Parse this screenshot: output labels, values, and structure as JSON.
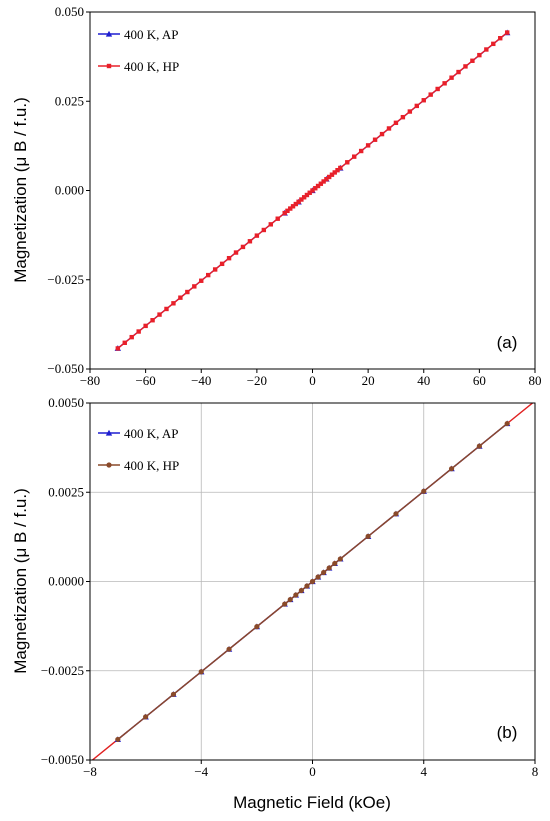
{
  "chart_data": [
    {
      "type": "line",
      "panel_label": "(a)",
      "ylabel": "Magnetization  (μ B / f.u.)",
      "xlabel": "",
      "xlim": [
        -80,
        80
      ],
      "ylim": [
        -0.05,
        0.05
      ],
      "xticks": [
        "−80",
        "−60",
        "−40",
        "−20",
        "0",
        "20",
        "40",
        "60",
        "80"
      ],
      "yticks": [
        "0.050",
        "0.025",
        "0.000",
        "−0.025",
        "−0.050"
      ],
      "grid": false,
      "legend_position": "top-left",
      "series": [
        {
          "name": "400 K, AP",
          "color": "#1f1fd0",
          "marker": "triangle",
          "x": [
            -70,
            -10,
            -5,
            0,
            5,
            10,
            70
          ],
          "y": [
            -0.0442,
            -0.0063,
            -0.0032,
            0.0,
            0.0032,
            0.0063,
            0.0442
          ]
        },
        {
          "name": "400 K, HP",
          "color": "#e8202a",
          "marker": "square",
          "x": [
            -70,
            -67.5,
            -65,
            -62.5,
            -60,
            -57.5,
            -55,
            -52.5,
            -50,
            -47.5,
            -45,
            -42.5,
            -40,
            -37.5,
            -35,
            -32.5,
            -30,
            -27.5,
            -25,
            -22.5,
            -20,
            -17.5,
            -15,
            -12.5,
            -10,
            -9,
            -8,
            -7,
            -6,
            -5,
            -4,
            -3,
            -2,
            -1,
            0,
            1,
            2,
            3,
            4,
            5,
            6,
            7,
            8,
            9,
            10,
            12.5,
            15,
            17.5,
            20,
            22.5,
            25,
            27.5,
            30,
            32.5,
            35,
            37.5,
            40,
            42.5,
            45,
            47.5,
            50,
            52.5,
            55,
            57.5,
            60,
            62.5,
            65,
            67.5,
            70
          ],
          "slope": 0.000632
        }
      ]
    },
    {
      "type": "line",
      "panel_label": "(b)",
      "ylabel": "Magnetization  (μ B / f.u.)",
      "xlabel": "Magnetic Field (kOe)",
      "xlim": [
        -8,
        8
      ],
      "ylim": [
        -0.005,
        0.005
      ],
      "xticks": [
        "−8",
        "−4",
        "0",
        "4",
        "8"
      ],
      "yticks": [
        "0.0050",
        "0.0025",
        "0.0000",
        "−0.0025",
        "−0.0050"
      ],
      "grid": true,
      "legend_position": "top-left",
      "fit_line_color": "#e02020",
      "series": [
        {
          "name": "400 K, AP",
          "color": "#1f1fd0",
          "marker": "triangle",
          "x": [
            -7,
            -6,
            -5,
            -4,
            -3,
            -2,
            -1,
            -0.8,
            -0.6,
            -0.4,
            -0.2,
            0,
            0.2,
            0.4,
            0.6,
            0.8,
            1,
            2,
            3,
            4,
            5,
            6,
            7
          ],
          "slope": 0.000632
        },
        {
          "name": "400 K, HP",
          "color": "#8a4a2a",
          "marker": "circle",
          "x": [
            -7,
            -6,
            -5,
            -4,
            -3,
            -2,
            -1,
            -0.8,
            -0.6,
            -0.4,
            -0.2,
            0,
            0.2,
            0.4,
            0.6,
            0.8,
            1,
            2,
            3,
            4,
            5,
            6,
            7
          ],
          "slope": 0.000632
        }
      ]
    }
  ]
}
